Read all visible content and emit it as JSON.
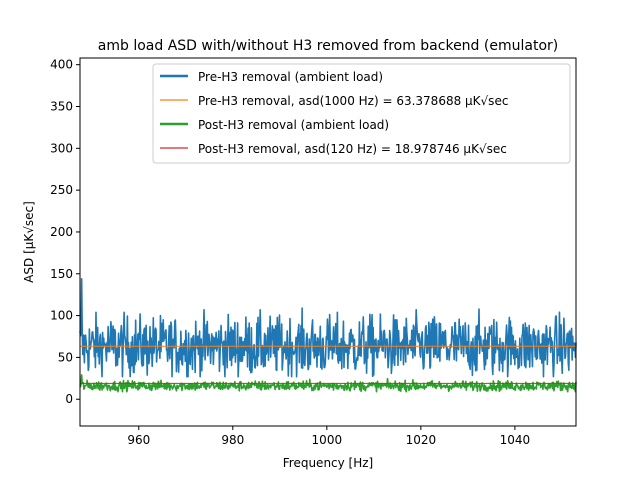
{
  "chart_data": {
    "type": "line",
    "title": "amb load ASD with/without H3 removed from backend (emulator)",
    "xlabel": "Frequency [Hz]",
    "ylabel": "ASD [μK√sec]",
    "xlim": [
      947.5,
      1053
    ],
    "ylim": [
      -32,
      408
    ],
    "x_ticks": [
      960,
      980,
      1000,
      1020,
      1040
    ],
    "y_ticks": [
      0,
      50,
      100,
      150,
      200,
      250,
      300,
      350,
      400
    ],
    "grid": false,
    "legend_position": "upper center",
    "series": [
      {
        "name": "Pre-H3 removal (ambient load)",
        "color": "#1f77b4",
        "kind": "noise",
        "mean": 63.4,
        "spread": 18,
        "min": 27,
        "max": 144
      },
      {
        "name": "Pre-H3 removal, asd(1000 Hz) = 63.378688 μK√sec",
        "color": "#ff7f0e",
        "kind": "hline",
        "value": 63.378688
      },
      {
        "name": "Post-H3 removal (ambient load)",
        "color": "#2ca02c",
        "kind": "noise",
        "mean": 16,
        "spread": 3,
        "min": 9,
        "max": 29
      },
      {
        "name": "Post-H3 removal, asd(120 Hz) = 18.978746 μK√sec",
        "color": "#d62728",
        "kind": "hline",
        "value": 18.978746
      }
    ]
  }
}
